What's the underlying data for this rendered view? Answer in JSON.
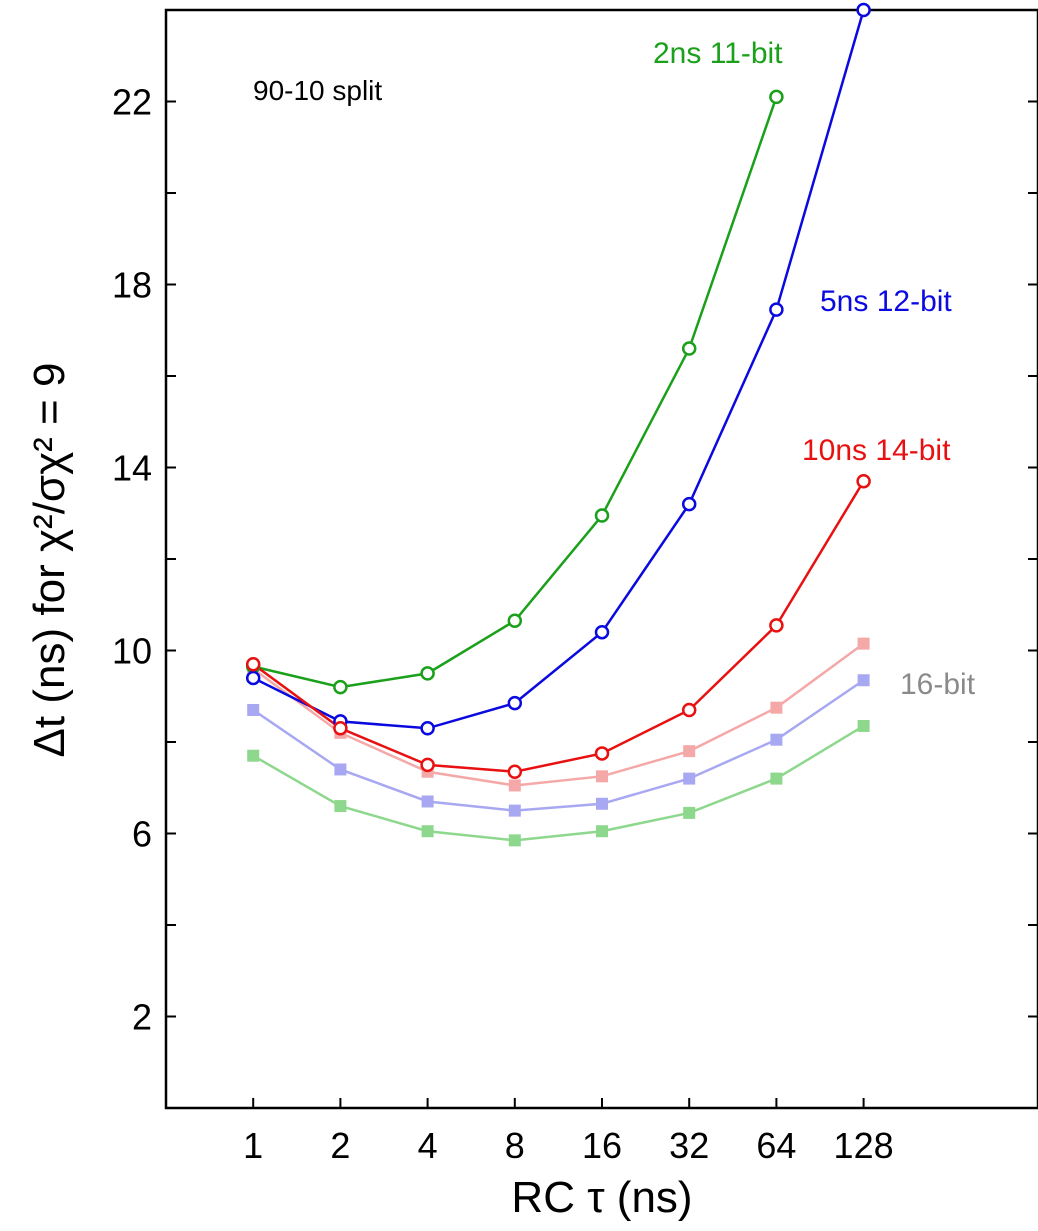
{
  "chart_data": {
    "type": "line",
    "title": "",
    "xlabel": "RC τ (ns)",
    "ylabel": "Δt (ns)  for χ²/σχ² = 9",
    "x_scale": "log2",
    "x": [
      1,
      2,
      4,
      8,
      16,
      32,
      64,
      128
    ],
    "x_tick_labels": [
      "1",
      "2",
      "4",
      "8",
      "16",
      "32",
      "64",
      "128"
    ],
    "xlim": [
      0.5,
      512
    ],
    "ylim": [
      0,
      24
    ],
    "y_ticks": [
      2,
      6,
      10,
      14,
      18,
      22
    ],
    "grid": false,
    "annotation": "90-10 split",
    "series": [
      {
        "name": "2ns 11-bit",
        "color": "#1aa01a",
        "marker": "circle-open",
        "values": [
          9.65,
          9.2,
          9.5,
          10.65,
          12.95,
          16.6,
          22.1,
          null
        ]
      },
      {
        "name": "5ns 12-bit",
        "color": "#0a0ae0",
        "marker": "circle-open",
        "values": [
          9.4,
          8.45,
          8.3,
          8.85,
          10.4,
          13.2,
          17.45,
          24.0
        ]
      },
      {
        "name": "10ns 14-bit",
        "color": "#e81010",
        "marker": "circle-open",
        "values": [
          9.7,
          8.3,
          7.5,
          7.35,
          7.75,
          8.7,
          10.55,
          13.7
        ]
      },
      {
        "name": "",
        "color": "#f5a8a8",
        "marker": "square-filled",
        "values": [
          9.6,
          8.2,
          7.35,
          7.05,
          7.25,
          7.8,
          8.75,
          10.15
        ]
      },
      {
        "name": "16-bit",
        "color": "#a8a8f2",
        "marker": "square-filled",
        "values": [
          8.7,
          7.4,
          6.7,
          6.5,
          6.65,
          7.2,
          8.05,
          9.35
        ]
      },
      {
        "name": "",
        "color": "#8ed88e",
        "marker": "square-filled",
        "values": [
          7.7,
          6.6,
          6.05,
          5.85,
          6.05,
          6.45,
          7.2,
          8.35
        ]
      }
    ],
    "label_colors": {
      "2ns 11-bit": "#1aa01a",
      "5ns 12-bit": "#0a0ae0",
      "10ns 14-bit": "#e81010",
      "16-bit": "#8a8a8a"
    }
  }
}
